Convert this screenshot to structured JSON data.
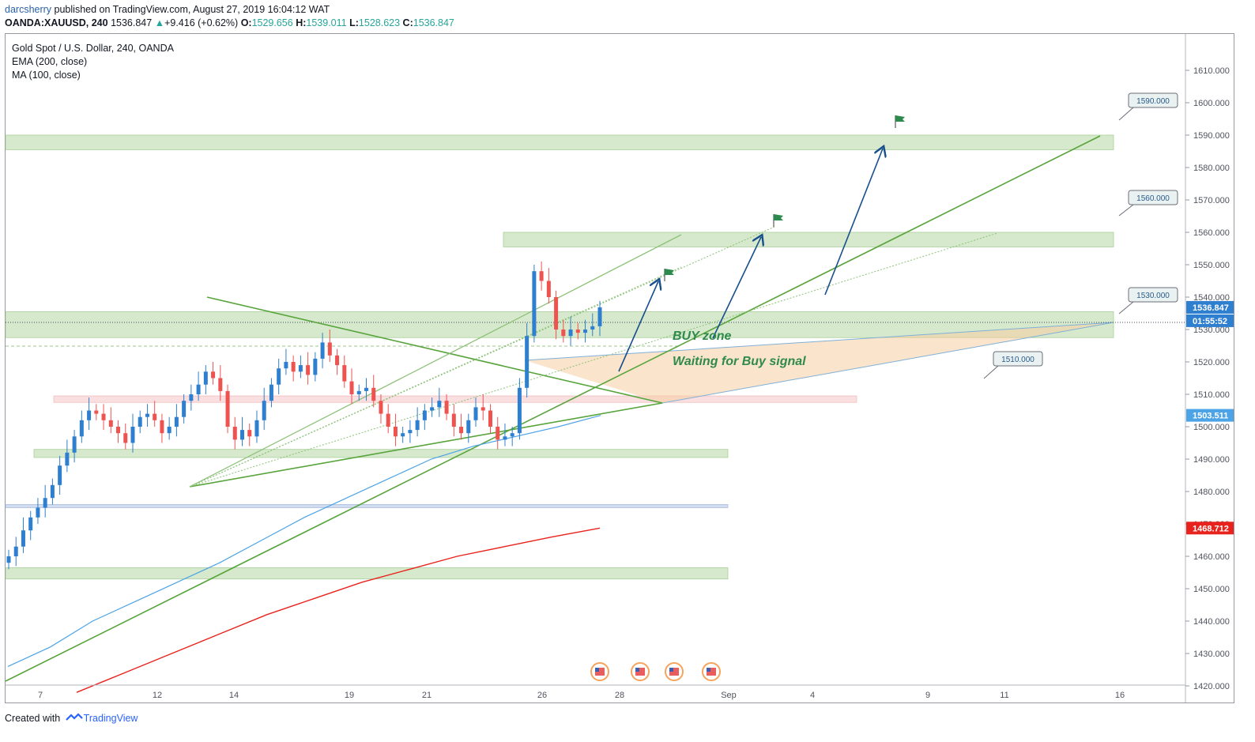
{
  "header": {
    "author": "darcsherry",
    "published": "published on TradingView.com, August 27, 2019 16:04:12 WAT"
  },
  "ohlc": {
    "symbol_line": "OANDA:XAUUSD, 240",
    "last": "1536.847",
    "change": "+9.416 (+0.62%)",
    "o_label": "O:",
    "o": "1529.656",
    "h_label": "H:",
    "h": "1539.011",
    "l_label": "L:",
    "l": "1528.623",
    "c_label": "C:",
    "c": "1536.847",
    "up_color": "#26a69a"
  },
  "legend": {
    "title": "Gold Spot / U.S. Dollar, 240, OANDA",
    "ema": "EMA (200, close)",
    "ma": "MA (100, close)"
  },
  "annotations": {
    "buy_zone": "BUY zone",
    "waiting": "Waiting for Buy signal",
    "callouts": [
      "1590.000",
      "1560.000",
      "1530.000",
      "1510.000"
    ]
  },
  "price_badges": {
    "last_price": "1536.847",
    "countdown": "01:55:52",
    "ema_value": "1503.511",
    "ma_value": "1468.712"
  },
  "footer": {
    "created": "Created with",
    "brand": "TradingView"
  },
  "colors": {
    "up": "#26a69a",
    "down": "#ef5350",
    "ema": "#4ca3e6",
    "ma": "#e8221c",
    "zone_green": "#cfe6c4",
    "trend_green": "#58a43c",
    "arrow_blue": "#174e8c"
  },
  "chart_data": {
    "type": "candlestick",
    "symbol": "XAUUSD",
    "interval": "240",
    "ylim": [
      1415,
      1615
    ],
    "y_ticks": [
      1420,
      1430,
      1440,
      1450,
      1460,
      1470,
      1480,
      1490,
      1500,
      1510,
      1520,
      1530,
      1540,
      1550,
      1560,
      1570,
      1580,
      1590,
      1600,
      1610
    ],
    "x_tick_labels": [
      "7",
      "12",
      "14",
      "19",
      "21",
      "26",
      "28",
      "Sep",
      "4",
      "9",
      "11",
      "16"
    ],
    "candles_close": [
      1460,
      1463,
      1468,
      1472,
      1475,
      1478,
      1482,
      1488,
      1492,
      1497,
      1502,
      1505,
      1504,
      1502,
      1500,
      1498,
      1495,
      1500,
      1503,
      1504,
      1502,
      1498,
      1500,
      1503,
      1508,
      1510,
      1513,
      1517,
      1515,
      1511,
      1500,
      1496,
      1499,
      1497,
      1502,
      1508,
      1513,
      1518,
      1520,
      1517,
      1519,
      1516,
      1521,
      1526,
      1522,
      1519,
      1514,
      1510,
      1511,
      1512,
      1508,
      1504,
      1500,
      1497,
      1498,
      1499,
      1502,
      1505,
      1506,
      1508,
      1504,
      1500,
      1498,
      1502,
      1506,
      1505,
      1500,
      1496,
      1497,
      1498,
      1512,
      1528,
      1548,
      1545,
      1540,
      1530,
      1528,
      1530,
      1529,
      1530,
      1531,
      1536.847
    ],
    "ema_200": [
      1426,
      1432,
      1440,
      1446,
      1452,
      1458,
      1465,
      1472,
      1478,
      1484,
      1490,
      1494,
      1497,
      1500,
      1503.5
    ],
    "ma_100": [
      1418,
      1424,
      1430,
      1436,
      1442,
      1447,
      1452,
      1456,
      1460,
      1463,
      1466,
      1468.7
    ],
    "zones": [
      {
        "label": "1590.000",
        "from": 1585.5,
        "to": 1590
      },
      {
        "label": "1560.000",
        "from": 1555.5,
        "to": 1560
      },
      {
        "label": "1530.000",
        "from": 1527.5,
        "to": 1535.5
      },
      {
        "label": "1510.000",
        "from": 1507.5,
        "to": 1509.5
      },
      {
        "label": "",
        "from": 1490.5,
        "to": 1493
      },
      {
        "label": "",
        "from": 1475,
        "to": 1476
      },
      {
        "label": "",
        "from": 1453,
        "to": 1456.5
      }
    ],
    "ylabel": "",
    "xlabel": ""
  }
}
